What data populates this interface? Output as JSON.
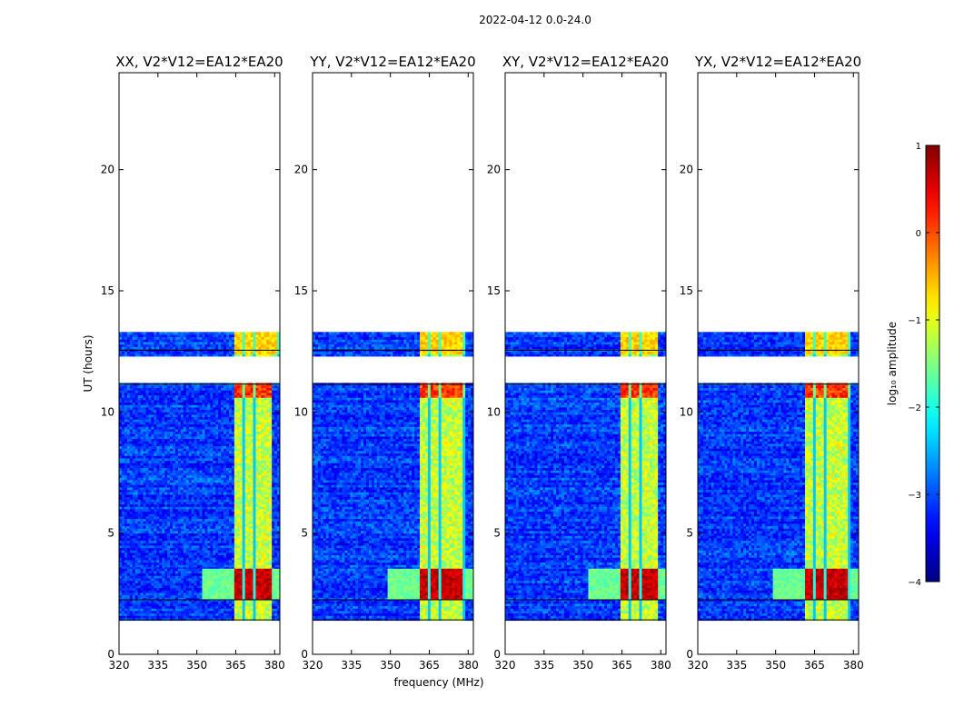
{
  "chart_data": {
    "type": "heatmap",
    "suptitle": "2022-04-12 0.0-24.0",
    "xlabel": "frequency (MHz)",
    "ylabel": "UT (hours)",
    "xlim": [
      320,
      382
    ],
    "ylim": [
      0,
      24
    ],
    "xticks": [
      320,
      335,
      350,
      365,
      380
    ],
    "yticks": [
      0,
      5,
      10,
      15,
      20
    ],
    "panels": [
      {
        "title": "XX, V2*V12=EA12*EA20",
        "strong_band_start": 363.5,
        "strong_band_end": 382,
        "band_start_below_11h": 363.5,
        "band_end_below_11h": 378.5
      },
      {
        "title": "YY, V2*V12=EA12*EA20",
        "strong_band_start": 360.5,
        "strong_band_end": 378.5,
        "band_start_below_11h": 360.5,
        "band_end_below_11h": 378.5
      },
      {
        "title": "XY, V2*V12=EA12*EA20",
        "strong_band_start": 363.5,
        "strong_band_end": 378.5,
        "band_start_below_11h": 363.5,
        "band_end_below_11h": 378.5
      },
      {
        "title": "YX, V2*V12=EA12*EA20",
        "strong_band_start": 360.5,
        "strong_band_end": 378.5,
        "band_start_below_11h": 360.5,
        "band_end_below_11h": 378.5
      }
    ],
    "data_segments_ut": [
      [
        1.4,
        2.25
      ],
      [
        2.25,
        3.6
      ],
      [
        3.6,
        11.2
      ],
      [
        12.3,
        13.3
      ]
    ],
    "gaps_ut": [
      [
        0,
        1.4
      ],
      [
        11.2,
        12.3
      ],
      [
        13.3,
        24
      ]
    ],
    "intense_rfi_ut": [
      2.25,
      3.5
    ],
    "colorbar": {
      "label": "log₁₀ amplitude",
      "min": -4,
      "max": 1,
      "ticks": [
        "1",
        "0",
        "−1",
        "−2",
        "−3",
        "−4"
      ],
      "colormap": "jet"
    }
  }
}
